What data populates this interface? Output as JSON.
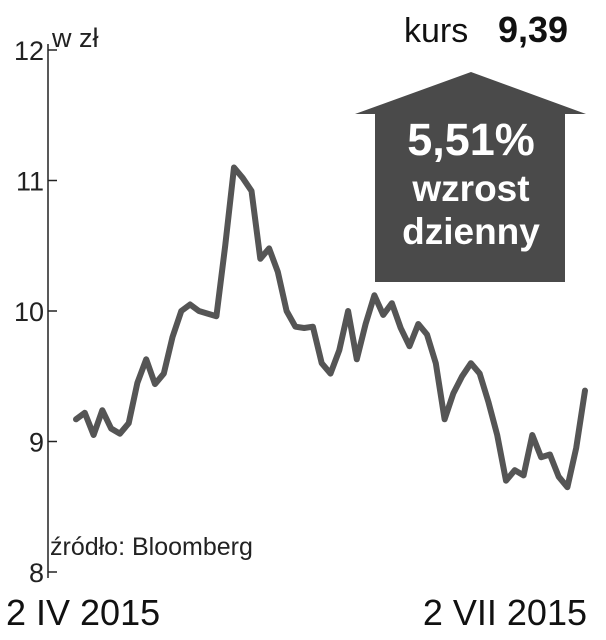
{
  "unit": "w zł",
  "kurs": {
    "label": "kurs",
    "value": "9,39"
  },
  "badge": {
    "percent": "5,51%",
    "line1": "wzrost",
    "line2": "dzienny",
    "color": "#4a4a4a"
  },
  "source": "źródło: Bloomberg",
  "chart_data": {
    "type": "line",
    "ylim": [
      8,
      12
    ],
    "y_ticks": [
      "12",
      "11",
      "10",
      "9",
      "8"
    ],
    "x_start_label": "2 IV 2015",
    "x_end_label": "2 VII 2015",
    "line_color": "#555555",
    "grid": false,
    "series": [
      {
        "values": [
          9.17,
          9.22,
          9.05,
          9.24,
          9.1,
          9.06,
          9.14,
          9.45,
          9.63,
          9.44,
          9.52,
          9.8,
          10.0,
          10.05,
          10.0,
          9.98,
          9.96,
          10.5,
          11.1,
          11.02,
          10.92,
          10.4,
          10.48,
          10.3,
          10.0,
          9.88,
          9.87,
          9.88,
          9.6,
          9.52,
          9.7,
          10.0,
          9.63,
          9.9,
          10.12,
          9.97,
          10.06,
          9.87,
          9.73,
          9.9,
          9.82,
          9.6,
          9.17,
          9.37,
          9.5,
          9.6,
          9.52,
          9.3,
          9.05,
          8.7,
          8.78,
          8.74,
          9.05,
          8.88,
          8.9,
          8.73,
          8.65,
          8.95,
          9.39
        ]
      }
    ]
  }
}
